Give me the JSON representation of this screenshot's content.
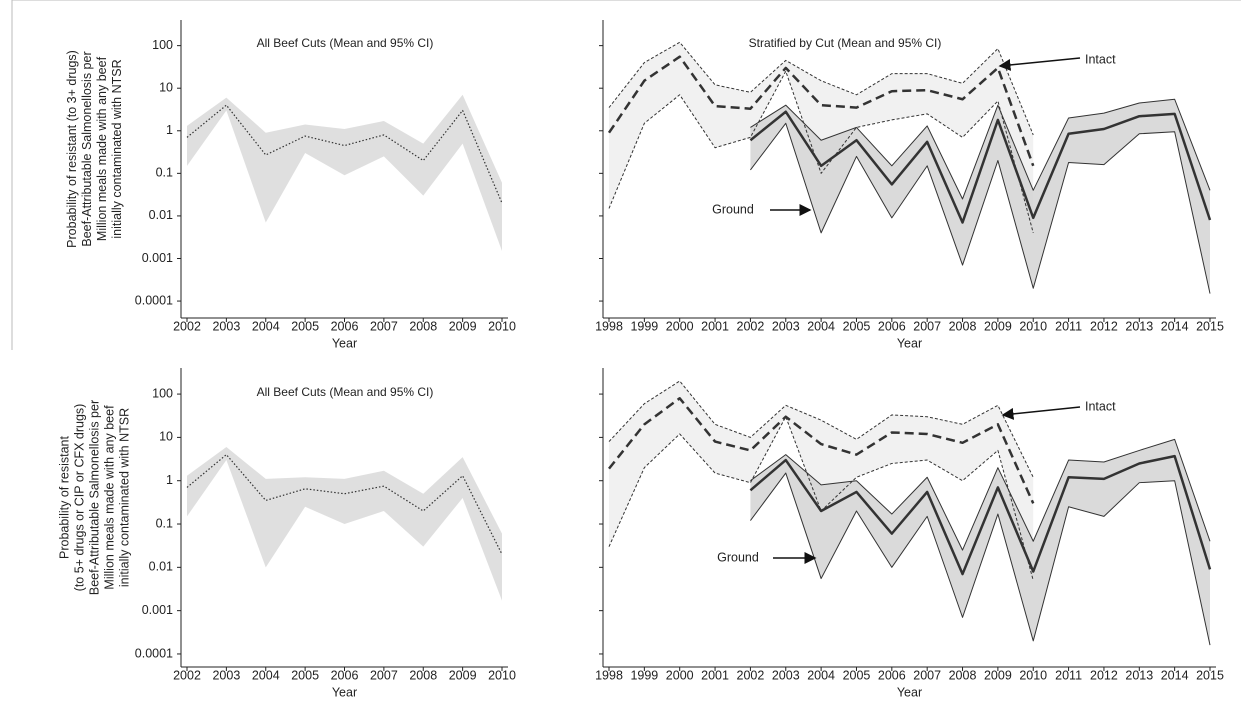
{
  "chart_data": [
    {
      "type": "line",
      "log": true,
      "title": "All Beef Cuts (Mean and 95% CI)",
      "xlabel": "Year",
      "ylabel": [
        "Probability of resistant (to 3+ drugs)",
        "Beef-Attributable Salmonellosis per",
        "Million meals made with any beef",
        "initially contaminated with NTSR"
      ],
      "categories": [
        "2002",
        "2003",
        "2004",
        "2005",
        "2006",
        "2007",
        "2008",
        "2009",
        "2010"
      ],
      "ylim": [
        4e-05,
        400
      ],
      "yticks": [
        100,
        10,
        1,
        0.1,
        0.01,
        0.001,
        0.0001
      ],
      "show_ytick_labels": true,
      "series": [
        {
          "color": "#333333",
          "fill": "#d9d9d9",
          "style": "dotted",
          "values": [
            0.7,
            4,
            0.27,
            0.75,
            0.45,
            0.8,
            0.2,
            3,
            0.02
          ],
          "upper": [
            1.3,
            6,
            0.9,
            1.4,
            1.1,
            1.7,
            0.5,
            7,
            0.06
          ],
          "lower": [
            0.15,
            3,
            0.007,
            0.3,
            0.09,
            0.25,
            0.03,
            0.5,
            0.0015
          ]
        }
      ]
    },
    {
      "type": "line",
      "log": true,
      "title": "Stratified by Cut (Mean and 95% CI)",
      "xlabel": "Year",
      "categories": [
        "1998",
        "1999",
        "2000",
        "2001",
        "2002",
        "2003",
        "2004",
        "2005",
        "2006",
        "2007",
        "2008",
        "2009",
        "2010",
        "2011",
        "2012",
        "2013",
        "2014",
        "2015"
      ],
      "ylim": [
        4e-05,
        400
      ],
      "yticks": [
        100,
        10,
        1,
        0.1,
        0.01,
        0.001,
        0.0001
      ],
      "show_ytick_labels": false,
      "series": [
        {
          "name": "Intact",
          "color": "#333333",
          "fill": "#efefef",
          "style": "dashed",
          "values": [
            0.9,
            15,
            55,
            3.8,
            3.3,
            30,
            4,
            3.5,
            8.5,
            9,
            5.5,
            30,
            0.15,
            null,
            null,
            null,
            null,
            null
          ],
          "upper": [
            3.5,
            40,
            120,
            12,
            8,
            45,
            15,
            7,
            22,
            22,
            13,
            85,
            0.8,
            null,
            null,
            null,
            null,
            null
          ],
          "lower": [
            0.015,
            1.5,
            7,
            0.4,
            0.7,
            25,
            0.1,
            1.2,
            1.8,
            2.5,
            0.7,
            5,
            0.004,
            null,
            null,
            null,
            null,
            null
          ]
        },
        {
          "name": "Ground",
          "color": "#333333",
          "fill": "#d4d4d4",
          "style": "solid",
          "values": [
            null,
            null,
            null,
            null,
            0.6,
            2.8,
            0.15,
            0.6,
            0.055,
            0.55,
            0.007,
            1.8,
            0.009,
            0.85,
            1.1,
            2.2,
            2.5,
            0.008
          ],
          "upper": [
            null,
            null,
            null,
            null,
            1.2,
            4,
            0.6,
            1.2,
            0.15,
            1.3,
            0.025,
            4,
            0.04,
            2,
            2.6,
            4.5,
            5.5,
            0.04
          ],
          "lower": [
            null,
            null,
            null,
            null,
            0.12,
            1.5,
            0.004,
            0.25,
            0.009,
            0.15,
            0.0007,
            0.2,
            0.0002,
            0.18,
            0.16,
            0.85,
            0.95,
            0.00015
          ]
        }
      ]
    },
    {
      "type": "line",
      "log": true,
      "title": "All Beef Cuts (Mean and 95% CI)",
      "xlabel": "Year",
      "ylabel": [
        "Probability of resistant",
        "(to 5+ drugs or CIP or CFX drugs)",
        "Beef-Attributable Salmonellosis per",
        "Million meals made with any beef",
        "initially contaminated with NTSR"
      ],
      "categories": [
        "2002",
        "2003",
        "2004",
        "2005",
        "2006",
        "2007",
        "2008",
        "2009",
        "2010"
      ],
      "ylim": [
        5e-05,
        400
      ],
      "yticks": [
        100,
        10,
        1,
        0.1,
        0.01,
        0.001,
        0.0001
      ],
      "show_ytick_labels": true,
      "series": [
        {
          "color": "#333333",
          "fill": "#d9d9d9",
          "style": "dotted",
          "values": [
            0.7,
            4,
            0.35,
            0.65,
            0.5,
            0.75,
            0.2,
            1.3,
            0.02
          ],
          "upper": [
            1.3,
            6,
            1.1,
            1.2,
            1.1,
            1.7,
            0.5,
            3.5,
            0.06
          ],
          "lower": [
            0.15,
            3,
            0.01,
            0.25,
            0.1,
            0.2,
            0.03,
            0.4,
            0.0017
          ]
        }
      ]
    },
    {
      "type": "line",
      "log": true,
      "xlabel": "Year",
      "categories": [
        "1998",
        "1999",
        "2000",
        "2001",
        "2002",
        "2003",
        "2004",
        "2005",
        "2006",
        "2007",
        "2008",
        "2009",
        "2010",
        "2011",
        "2012",
        "2013",
        "2014",
        "2015"
      ],
      "ylim": [
        5e-05,
        400
      ],
      "yticks": [
        100,
        10,
        1,
        0.1,
        0.01,
        0.001,
        0.0001
      ],
      "show_ytick_labels": false,
      "series": [
        {
          "name": "Intact",
          "color": "#333333",
          "fill": "#efefef",
          "style": "dashed",
          "values": [
            1.9,
            20,
            80,
            8,
            5,
            30,
            7,
            4,
            13,
            12,
            7.5,
            20,
            0.3,
            null,
            null,
            null,
            null,
            null
          ],
          "upper": [
            8,
            60,
            200,
            20,
            10,
            55,
            25,
            9,
            33,
            30,
            20,
            55,
            1.2,
            null,
            null,
            null,
            null,
            null
          ],
          "lower": [
            0.03,
            2,
            12,
            1.5,
            0.9,
            30,
            0.2,
            1.2,
            2.5,
            3,
            1,
            5,
            0.005,
            null,
            null,
            null,
            null,
            null
          ]
        },
        {
          "name": "Ground",
          "color": "#333333",
          "fill": "#d4d4d4",
          "style": "solid",
          "values": [
            null,
            null,
            null,
            null,
            0.6,
            3,
            0.2,
            0.55,
            0.06,
            0.55,
            0.007,
            0.7,
            0.008,
            1.2,
            1.1,
            2.5,
            3.7,
            0.009
          ],
          "upper": [
            null,
            null,
            null,
            null,
            1,
            4,
            0.8,
            1,
            0.17,
            1.2,
            0.025,
            2,
            0.04,
            3,
            2.7,
            5,
            9,
            0.04
          ],
          "lower": [
            null,
            null,
            null,
            null,
            0.12,
            1.5,
            0.0055,
            0.2,
            0.01,
            0.15,
            0.0007,
            0.17,
            0.0002,
            0.25,
            0.15,
            0.9,
            1,
            0.00016
          ]
        }
      ]
    }
  ]
}
